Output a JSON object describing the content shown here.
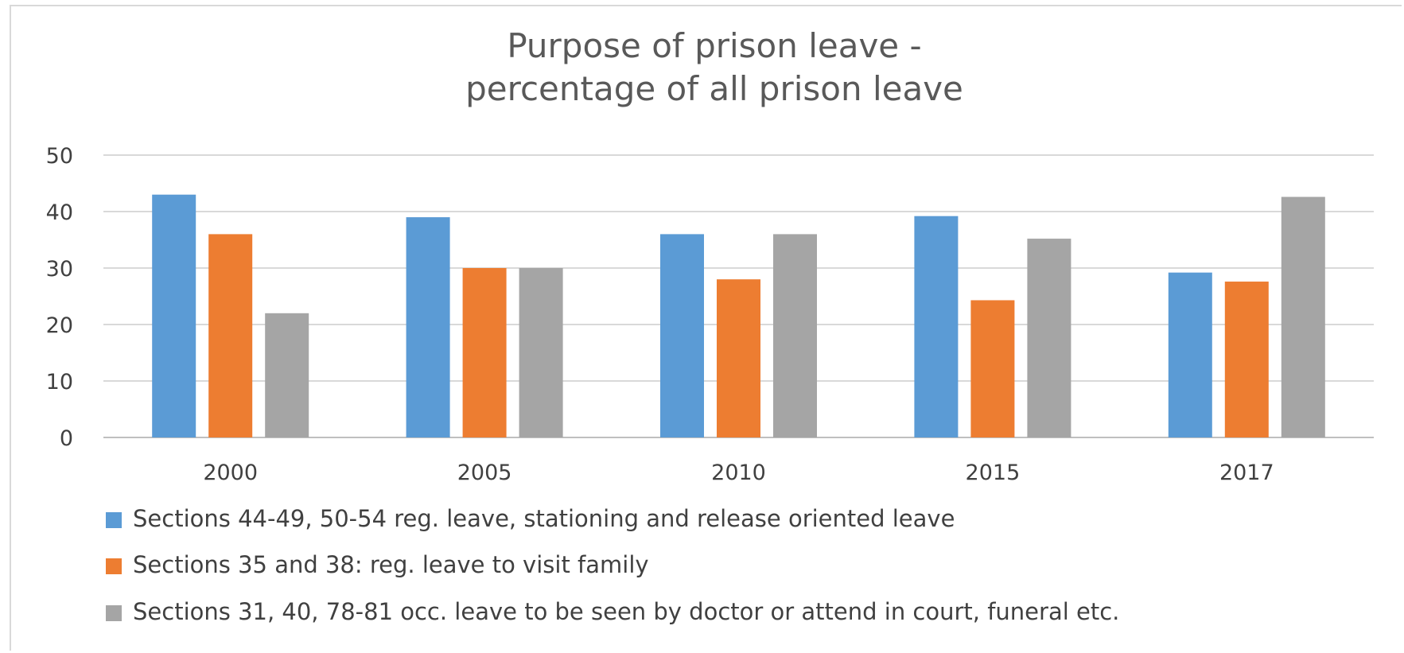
{
  "chart_data": {
    "type": "bar",
    "title": [
      "Purpose of prison leave -",
      "percentage of all prison leave"
    ],
    "xlabel": "",
    "ylabel": "",
    "categories": [
      "2000",
      "2005",
      "2010",
      "2015",
      "2017"
    ],
    "ylim": [
      0,
      50
    ],
    "yticks": [
      0,
      10,
      20,
      30,
      40,
      50
    ],
    "grid": true,
    "legend_position": "bottom",
    "series": [
      {
        "name": "Sections 44-49, 50-54 reg. leave, stationing and release oriented leave",
        "color": "#5b9bd5",
        "values": [
          43,
          39,
          36,
          39.2,
          29.2
        ]
      },
      {
        "name": "Sections 35 and 38: reg. leave to visit family",
        "color": "#ed7d31",
        "values": [
          36,
          30,
          28,
          24.3,
          27.6
        ]
      },
      {
        "name": "Sections 31, 40, 78-81 occ. leave to be seen by doctor or attend in court, funeral etc.",
        "color": "#a5a5a5",
        "values": [
          22,
          30,
          36,
          35.2,
          42.6
        ]
      }
    ]
  }
}
